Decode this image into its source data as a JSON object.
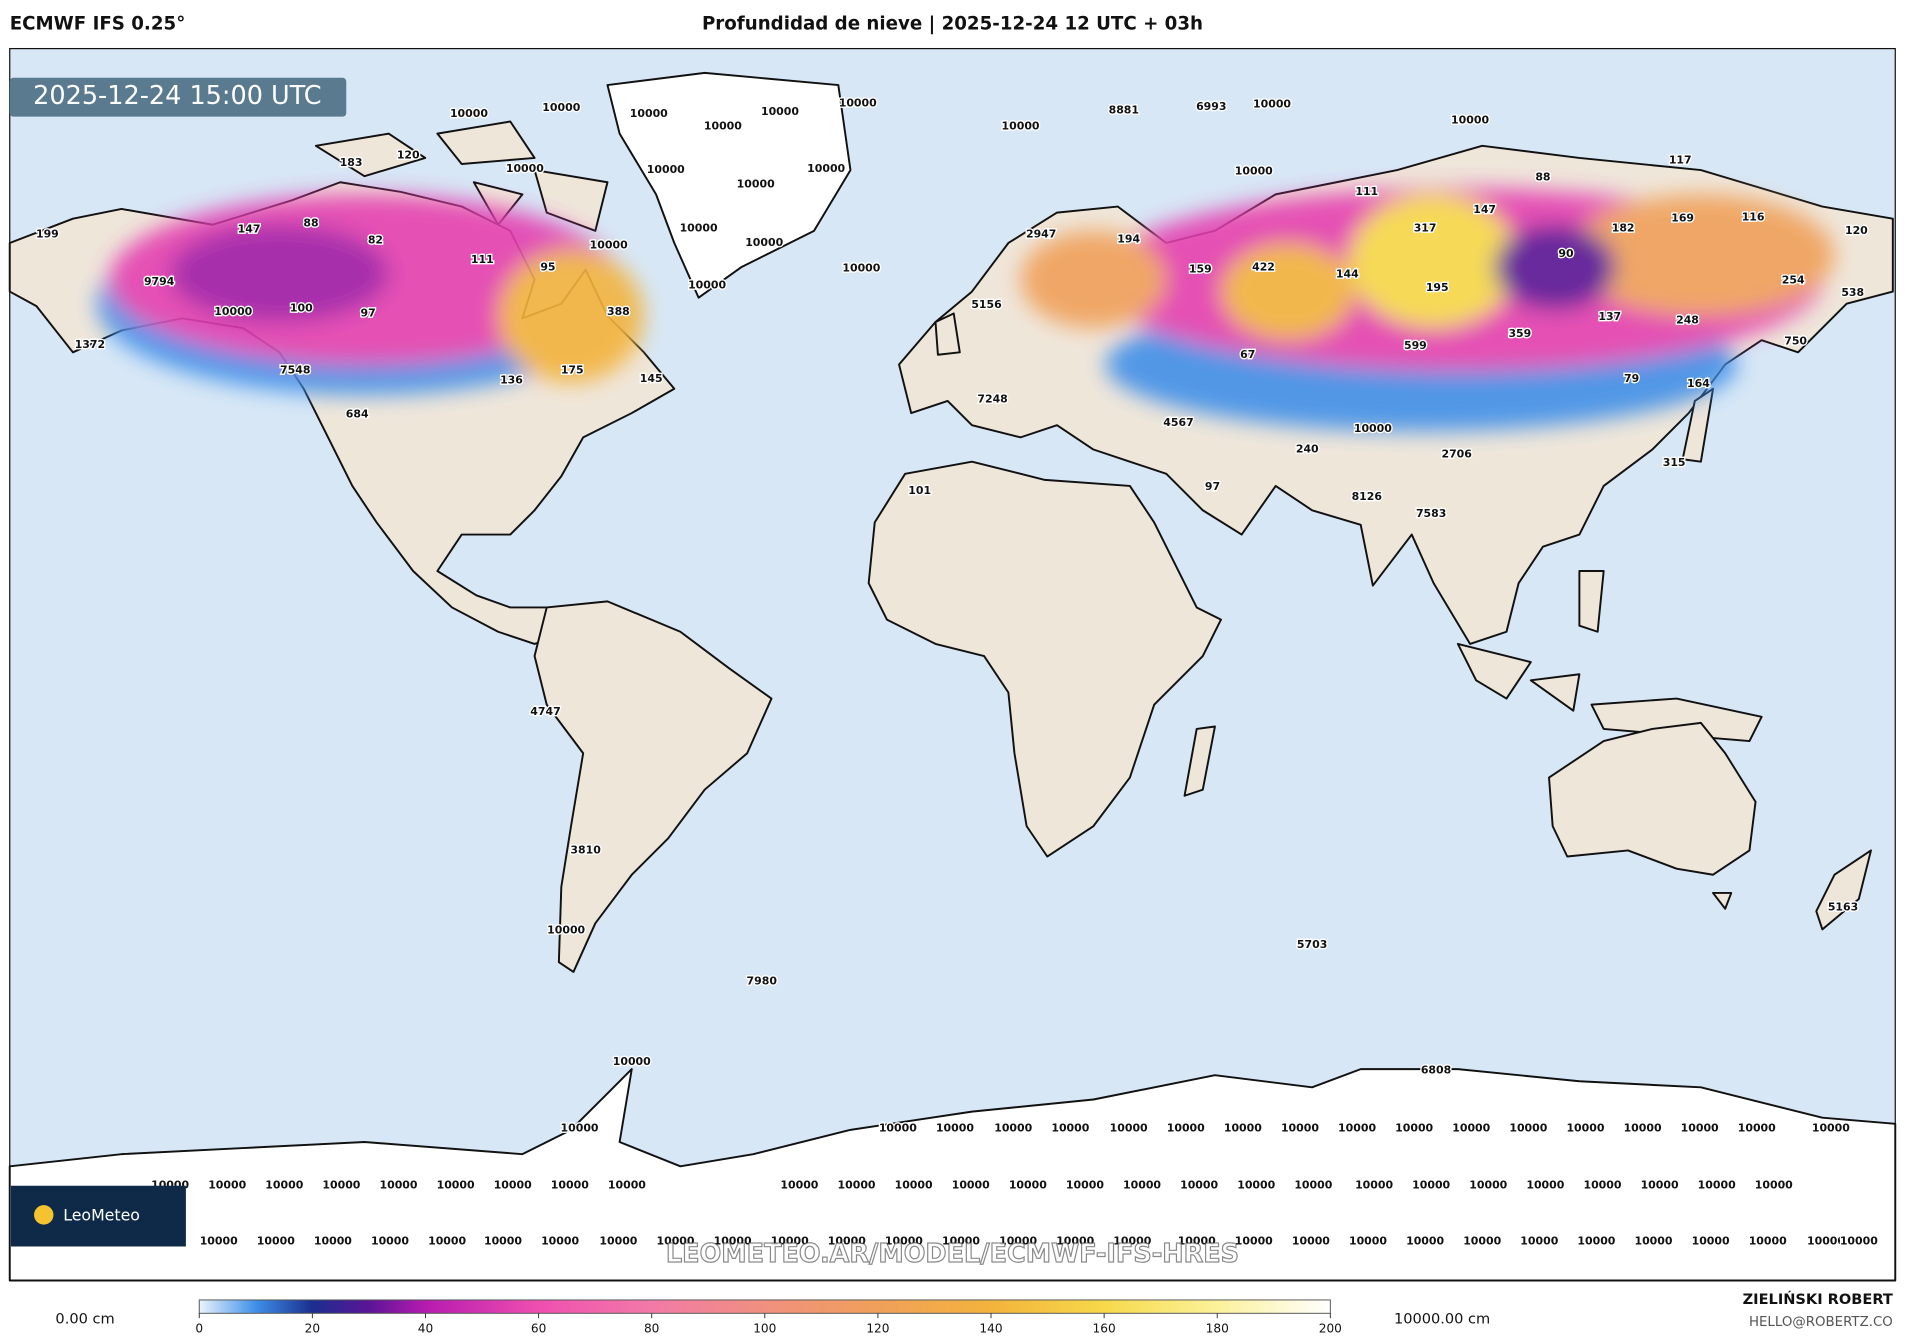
{
  "header": {
    "model": "ECMWF IFS 0.25°",
    "title": "Profundidad de nieve | 2025-12-24 12 UTC + 03h"
  },
  "valid_time": "2025-12-24 15:00 UTC",
  "logo": "LeoMeteo",
  "watermark": "LEOMETEO.AR/MODEL/ECMWF-IFS-HRES",
  "author": {
    "name": "ZIELIŃSKI ROBERT",
    "email": "HELLO@ROBERTZ.CO"
  },
  "colorbar": {
    "min_label": "0.00 cm",
    "max_label": "10000.00 cm",
    "lim": [
      0,
      200
    ],
    "ticks": [
      0,
      20,
      40,
      60,
      80,
      100,
      120,
      140,
      160,
      180,
      200
    ]
  },
  "map_labels": [
    "10000",
    "10000",
    "10000",
    "10000",
    "10000",
    "10000",
    "10000",
    "8881",
    "6993",
    "10000",
    "10000",
    "183",
    "120",
    "10000",
    "10000",
    "10000",
    "10000",
    "10000",
    "117",
    "88",
    "111",
    "199",
    "147",
    "88",
    "82",
    "111",
    "95",
    "10000",
    "10000",
    "10000",
    "10000",
    "10000",
    "2947",
    "194",
    "317",
    "147",
    "182",
    "169",
    "116",
    "120",
    "9794",
    "10000",
    "100",
    "97",
    "388",
    "159",
    "422",
    "144",
    "195",
    "90",
    "254",
    "538",
    "5156",
    "137",
    "248",
    "1372",
    "7548",
    "175",
    "136",
    "145",
    "67",
    "599",
    "359",
    "750",
    "79",
    "164",
    "7248",
    "684",
    "4567",
    "10000",
    "2706",
    "240",
    "315",
    "101",
    "97",
    "8126",
    "7583",
    "4747",
    "3810",
    "10000",
    "5703",
    "5163",
    "7980",
    "10000",
    "6808",
    "10000"
  ],
  "antarctica_row1": [
    "10000",
    "10000",
    "10000",
    "10000",
    "10000",
    "10000",
    "10000",
    "10000",
    "10000",
    "10000",
    "10000",
    "10000",
    "10000",
    "10000",
    "10000",
    "10000",
    "10000"
  ],
  "antarctica_row2": [
    "10000",
    "10000",
    "10000",
    "10000",
    "10000",
    "10000",
    "10000",
    "10000",
    "10000",
    "10000",
    "10000",
    "10000",
    "10000",
    "10000",
    "10000",
    "10000",
    "10000",
    "10000",
    "10000",
    "10000",
    "10000",
    "10000",
    "10000",
    "10000",
    "10000",
    "10000",
    "10000"
  ],
  "antarctica_row3": [
    "10000",
    "10000",
    "10000",
    "10000",
    "10000",
    "10000",
    "10000",
    "10000",
    "10000",
    "10000",
    "10000",
    "10000",
    "10000",
    "10000",
    "10000",
    "10000",
    "10000",
    "10000",
    "10000",
    "10000",
    "10000",
    "10000",
    "10000",
    "10000",
    "10000",
    "10000",
    "10000",
    "10000",
    "10000",
    "10000",
    "10000"
  ]
}
